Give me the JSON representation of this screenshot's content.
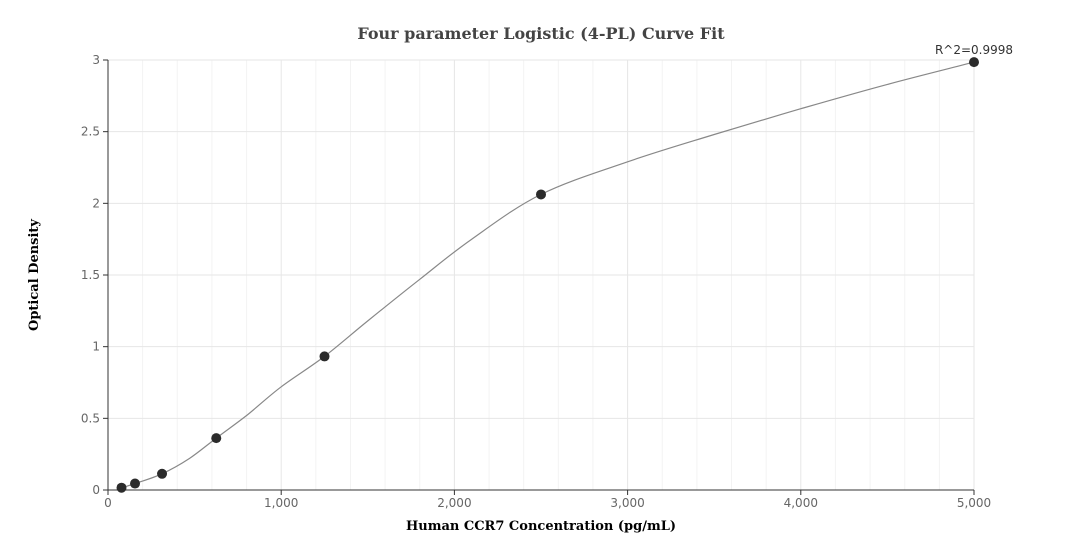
{
  "chart_data": {
    "type": "scatter",
    "title": "Four parameter Logistic (4-PL) Curve Fit",
    "xlabel": "Human CCR7 Concentration (pg/mL)",
    "ylabel": "Optical Density",
    "xlim": [
      0,
      5000
    ],
    "ylim": [
      0,
      3
    ],
    "x_ticks": [
      0,
      1000,
      2000,
      3000,
      4000,
      5000
    ],
    "x_tick_labels": [
      "0",
      "1,000",
      "2,000",
      "3,000",
      "4,000",
      "5,000"
    ],
    "y_ticks": [
      0,
      0.5,
      1,
      1.5,
      2,
      2.5,
      3
    ],
    "y_tick_labels": [
      "0",
      "0.5",
      "1",
      "1.5",
      "2",
      "2.5",
      "3"
    ],
    "grid": true,
    "legend": "none",
    "annotation": "R^2=0.9998",
    "points": {
      "x": [
        78,
        156,
        312,
        625,
        1250,
        2500,
        5000
      ],
      "y": [
        0.016,
        0.045,
        0.113,
        0.362,
        0.932,
        2.062,
        2.985
      ]
    },
    "fit_curve": {
      "x": [
        78,
        156,
        312,
        470,
        625,
        800,
        1000,
        1250,
        1500,
        1800,
        2100,
        2500,
        3000,
        3500,
        4000,
        4500,
        5000
      ],
      "y": [
        0.016,
        0.045,
        0.113,
        0.22,
        0.362,
        0.52,
        0.72,
        0.932,
        1.18,
        1.47,
        1.75,
        2.062,
        2.29,
        2.48,
        2.66,
        2.83,
        2.985
      ]
    },
    "colors": {
      "point": "#2b2b2b",
      "curve": "#888888",
      "grid": "#e6e6e6",
      "minor_grid": "#f3f3f3",
      "axis": "#333333"
    }
  }
}
